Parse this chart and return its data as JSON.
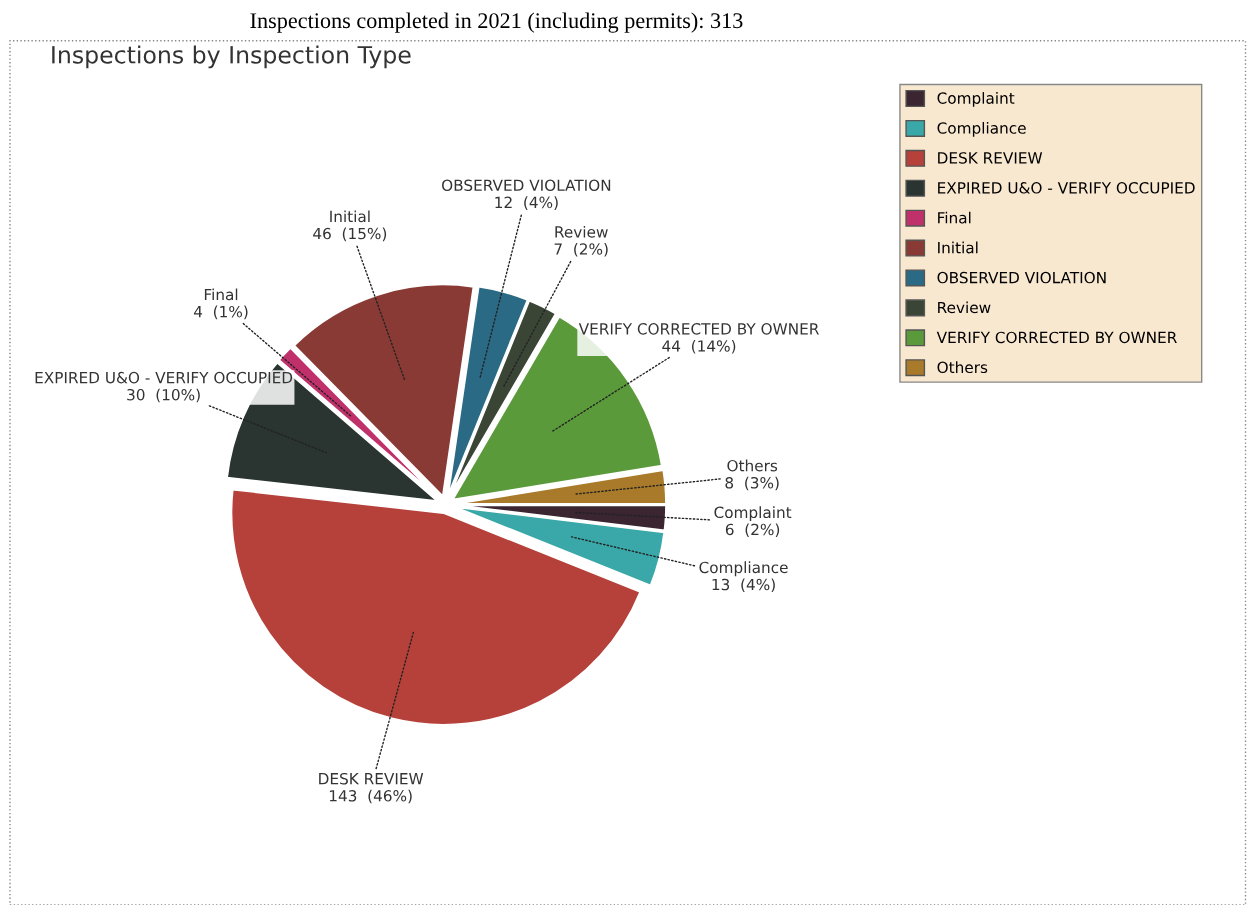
{
  "chart_data": {
    "type": "pie",
    "title": "Inspections by Inspection Type",
    "annotations": [
      "Inspections completed in 2021 (including permits): 313"
    ],
    "categories": [
      "Complaint",
      "Compliance",
      "DESK REVIEW",
      "EXPIRED U&O - VERIFY OCCUPIED",
      "Final",
      "Initial",
      "OBSERVED VIOLATION",
      "Review",
      "VERIFY CORRECTED BY OWNER",
      "Others"
    ],
    "values": [
      6,
      13,
      143,
      30,
      4,
      46,
      12,
      7,
      44,
      8
    ],
    "value_labels": [
      "6  (2%)",
      "13  (4%)",
      "143  (46%)",
      "30  (10%)",
      "4  (1%)",
      "46  (15%)",
      "12  (4%)",
      "7  (2%)",
      "44  (14%)",
      "8  (3%)"
    ],
    "colors": [
      "#3a2530",
      "#3aa8a8",
      "#b5413a",
      "#2a3430",
      "#c0306a",
      "#8a3a35",
      "#2a6a85",
      "#3a4535",
      "#5a9a3a",
      "#a87a2a"
    ],
    "legend": "right"
  }
}
